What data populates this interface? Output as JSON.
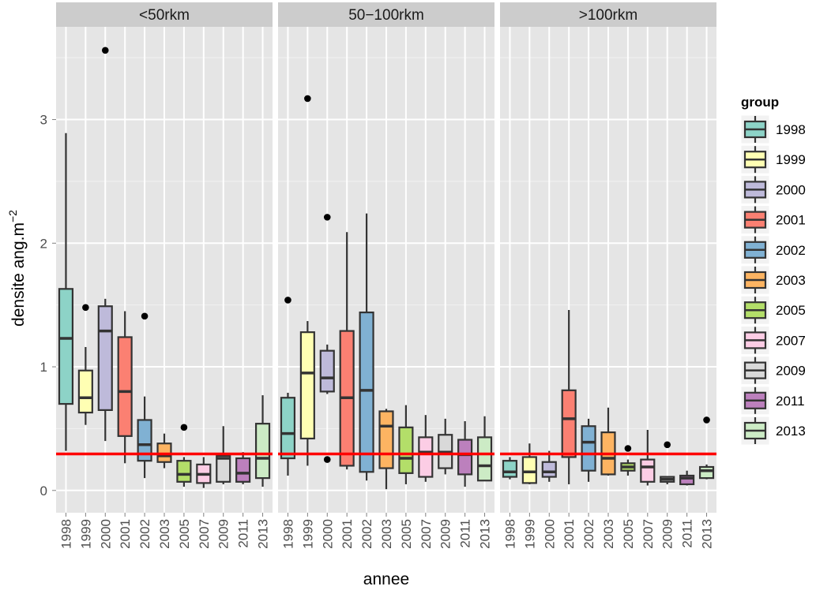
{
  "chart_data": {
    "type": "boxplot",
    "xlabel": "annee",
    "ylabel": "densite ang.m",
    "ylabel_sup": "−2",
    "ylim": [
      -0.18,
      3.75
    ],
    "yticks": [
      {
        "value": 0,
        "label": "0"
      },
      {
        "value": 1,
        "label": "1"
      },
      {
        "value": 2,
        "label": "2"
      },
      {
        "value": 3,
        "label": "3"
      }
    ],
    "categories": [
      "1998",
      "1999",
      "2000",
      "2001",
      "2002",
      "2003",
      "2005",
      "2007",
      "2009",
      "2011",
      "2013"
    ],
    "reference_line": {
      "value": 0.295,
      "color": "#ff0000"
    },
    "legend": {
      "title": "group",
      "items": [
        {
          "label": "1998",
          "color": "#8dd3c7"
        },
        {
          "label": "1999",
          "color": "#ffffb3"
        },
        {
          "label": "2000",
          "color": "#bebada"
        },
        {
          "label": "2001",
          "color": "#fb8072"
        },
        {
          "label": "2002",
          "color": "#80b1d3"
        },
        {
          "label": "2003",
          "color": "#fdb462"
        },
        {
          "label": "2005",
          "color": "#b3de69"
        },
        {
          "label": "2007",
          "color": "#fccde5"
        },
        {
          "label": "2009",
          "color": "#d9d9d9"
        },
        {
          "label": "2011",
          "color": "#bc80bd"
        },
        {
          "label": "2013",
          "color": "#ccebc5"
        }
      ]
    },
    "panels": [
      {
        "strip": "<50rkm",
        "boxes": [
          {
            "year": "1998",
            "lo": 0.32,
            "q1": 0.7,
            "med": 1.23,
            "q3": 1.63,
            "hi": 2.89,
            "out": []
          },
          {
            "year": "1999",
            "lo": 0.53,
            "q1": 0.63,
            "med": 0.75,
            "q3": 0.97,
            "hi": 1.16,
            "out": [
              1.48
            ]
          },
          {
            "year": "2000",
            "lo": 0.4,
            "q1": 0.65,
            "med": 1.29,
            "q3": 1.49,
            "hi": 1.55,
            "out": [
              3.56
            ]
          },
          {
            "year": "2001",
            "lo": 0.22,
            "q1": 0.44,
            "med": 0.8,
            "q3": 1.24,
            "hi": 1.45,
            "out": []
          },
          {
            "year": "2002",
            "lo": 0.1,
            "q1": 0.24,
            "med": 0.37,
            "q3": 0.57,
            "hi": 0.76,
            "out": [
              1.41
            ]
          },
          {
            "year": "2003",
            "lo": 0.18,
            "q1": 0.23,
            "med": 0.28,
            "q3": 0.38,
            "hi": 0.46,
            "out": []
          },
          {
            "year": "2005",
            "lo": 0.03,
            "q1": 0.07,
            "med": 0.13,
            "q3": 0.24,
            "hi": 0.27,
            "out": [
              0.51
            ]
          },
          {
            "year": "2007",
            "lo": 0.02,
            "q1": 0.06,
            "med": 0.13,
            "q3": 0.21,
            "hi": 0.27,
            "out": []
          },
          {
            "year": "2009",
            "lo": 0.05,
            "q1": 0.07,
            "med": 0.26,
            "q3": 0.28,
            "hi": 0.52,
            "out": []
          },
          {
            "year": "2011",
            "lo": 0.05,
            "q1": 0.07,
            "med": 0.14,
            "q3": 0.26,
            "hi": 0.31,
            "out": []
          },
          {
            "year": "2013",
            "lo": 0.03,
            "q1": 0.1,
            "med": 0.26,
            "q3": 0.54,
            "hi": 0.77,
            "out": []
          }
        ]
      },
      {
        "strip": "50−100rkm",
        "boxes": [
          {
            "year": "1998",
            "lo": 0.12,
            "q1": 0.26,
            "med": 0.46,
            "q3": 0.75,
            "hi": 0.79,
            "out": [
              1.54
            ]
          },
          {
            "year": "1999",
            "lo": 0.2,
            "q1": 0.42,
            "med": 0.95,
            "q3": 1.28,
            "hi": 1.37,
            "out": [
              3.17
            ]
          },
          {
            "year": "2000",
            "lo": 0.78,
            "q1": 0.8,
            "med": 0.91,
            "q3": 1.13,
            "hi": 1.18,
            "out": [
              2.21,
              0.25
            ]
          },
          {
            "year": "2001",
            "lo": 0.17,
            "q1": 0.2,
            "med": 0.75,
            "q3": 1.29,
            "hi": 2.09,
            "out": []
          },
          {
            "year": "2002",
            "lo": 0.08,
            "q1": 0.15,
            "med": 0.81,
            "q3": 1.44,
            "hi": 2.24,
            "out": []
          },
          {
            "year": "2003",
            "lo": 0.01,
            "q1": 0.18,
            "med": 0.52,
            "q3": 0.64,
            "hi": 0.66,
            "out": []
          },
          {
            "year": "2005",
            "lo": 0.05,
            "q1": 0.14,
            "med": 0.26,
            "q3": 0.51,
            "hi": 0.69,
            "out": []
          },
          {
            "year": "2007",
            "lo": 0.07,
            "q1": 0.11,
            "med": 0.31,
            "q3": 0.43,
            "hi": 0.61,
            "out": []
          },
          {
            "year": "2009",
            "lo": 0.13,
            "q1": 0.18,
            "med": 0.31,
            "q3": 0.45,
            "hi": 0.58,
            "out": []
          },
          {
            "year": "2011",
            "lo": 0.03,
            "q1": 0.13,
            "med": 0.29,
            "q3": 0.41,
            "hi": 0.56,
            "out": []
          },
          {
            "year": "2013",
            "lo": 0.08,
            "q1": 0.08,
            "med": 0.2,
            "q3": 0.43,
            "hi": 0.6,
            "out": []
          }
        ]
      },
      {
        "strip": ">100rkm",
        "boxes": [
          {
            "year": "1998",
            "lo": 0.09,
            "q1": 0.11,
            "med": 0.15,
            "q3": 0.24,
            "hi": 0.27,
            "out": []
          },
          {
            "year": "1999",
            "lo": 0.05,
            "q1": 0.06,
            "med": 0.15,
            "q3": 0.27,
            "hi": 0.38,
            "out": []
          },
          {
            "year": "2000",
            "lo": 0.07,
            "q1": 0.11,
            "med": 0.15,
            "q3": 0.23,
            "hi": 0.32,
            "out": []
          },
          {
            "year": "2001",
            "lo": 0.05,
            "q1": 0.27,
            "med": 0.58,
            "q3": 0.81,
            "hi": 1.46,
            "out": []
          },
          {
            "year": "2002",
            "lo": 0.07,
            "q1": 0.16,
            "med": 0.39,
            "q3": 0.52,
            "hi": 0.58,
            "out": []
          },
          {
            "year": "2003",
            "lo": 0.12,
            "q1": 0.13,
            "med": 0.26,
            "q3": 0.47,
            "hi": 0.67,
            "out": []
          },
          {
            "year": "2005",
            "lo": 0.12,
            "q1": 0.16,
            "med": 0.19,
            "q3": 0.22,
            "hi": 0.25,
            "out": [
              0.34
            ]
          },
          {
            "year": "2007",
            "lo": 0.04,
            "q1": 0.07,
            "med": 0.19,
            "q3": 0.25,
            "hi": 0.49,
            "out": []
          },
          {
            "year": "2009",
            "lo": 0.05,
            "q1": 0.07,
            "med": 0.09,
            "q3": 0.11,
            "hi": 0.11,
            "out": [
              0.37
            ]
          },
          {
            "year": "2011",
            "lo": 0.04,
            "q1": 0.05,
            "med": 0.1,
            "q3": 0.12,
            "hi": 0.16,
            "out": []
          },
          {
            "year": "2013",
            "lo": 0.09,
            "q1": 0.1,
            "med": 0.16,
            "q3": 0.19,
            "hi": 0.21,
            "out": [
              0.57
            ]
          }
        ]
      }
    ]
  }
}
